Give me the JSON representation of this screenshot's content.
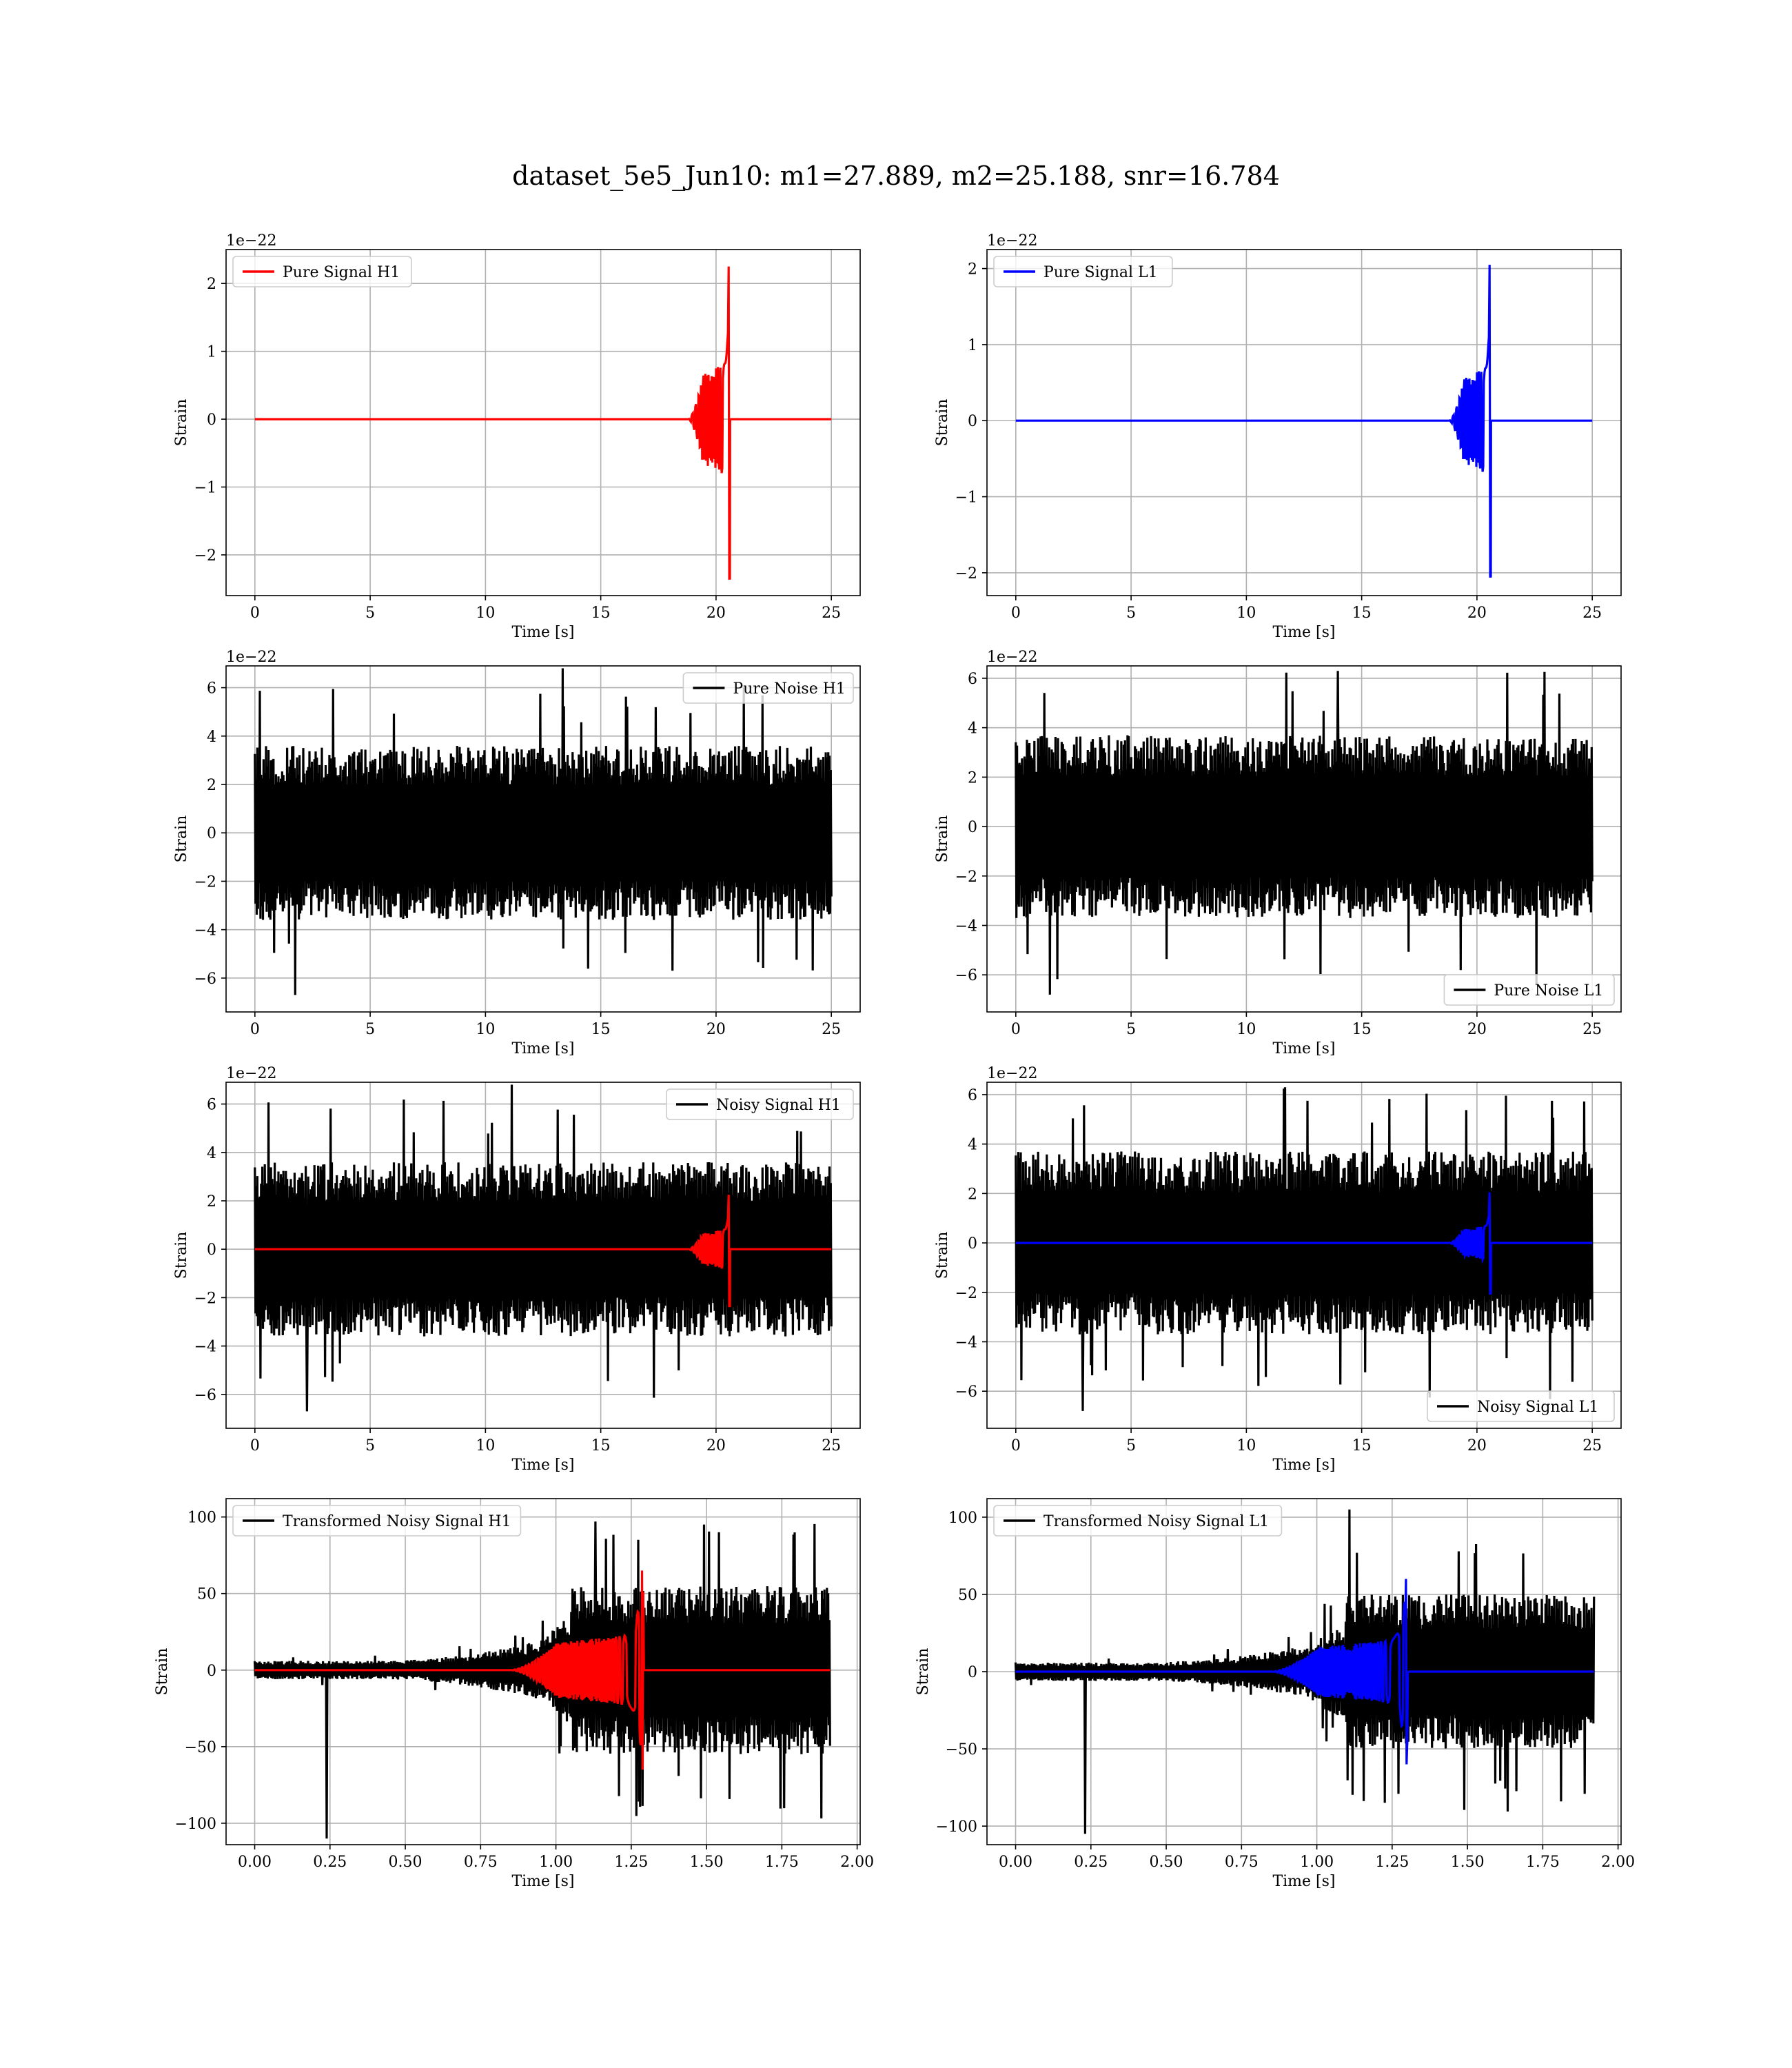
{
  "figure": {
    "title": "dataset_5e5_Jun10: m1=27.889, m2=25.188, snr=16.784"
  },
  "chart_data": [
    {
      "type": "line",
      "panel": "pure-signal-h1",
      "legend": "Pure Signal H1",
      "legend_loc": "upper-left",
      "xlabel": "Time [s]",
      "ylabel": "Strain",
      "offset_text": "1e−22",
      "xlim": [
        -1.25,
        26.25
      ],
      "ylim": [
        -2.6,
        2.5
      ],
      "xticks": [
        0,
        5,
        10,
        15,
        20,
        25
      ],
      "xtick_labels": [
        "0",
        "5",
        "10",
        "15",
        "20",
        "25"
      ],
      "yticks": [
        -2,
        -1,
        0,
        1,
        2
      ],
      "ytick_labels": [
        "−2",
        "−1",
        "0",
        "1",
        "2"
      ],
      "grid": true,
      "series": [
        {
          "name": "Pure Signal H1",
          "kind": "chirp",
          "color": "#ff0000",
          "x_range": [
            0,
            25
          ],
          "onset": 18.8,
          "peak_time": 20.6,
          "envelope_mid": 0.65,
          "peak_pos": 2.25,
          "peak_neg": -2.35
        }
      ]
    },
    {
      "type": "line",
      "panel": "pure-signal-l1",
      "legend": "Pure Signal L1",
      "legend_loc": "upper-left",
      "xlabel": "Time [s]",
      "ylabel": "Strain",
      "offset_text": "1e−22",
      "xlim": [
        -1.25,
        26.25
      ],
      "ylim": [
        -2.3,
        2.25
      ],
      "xticks": [
        0,
        5,
        10,
        15,
        20,
        25
      ],
      "xtick_labels": [
        "0",
        "5",
        "10",
        "15",
        "20",
        "25"
      ],
      "yticks": [
        -2,
        -1,
        0,
        1,
        2
      ],
      "ytick_labels": [
        "−2",
        "−1",
        "0",
        "1",
        "2"
      ],
      "grid": true,
      "series": [
        {
          "name": "Pure Signal L1",
          "kind": "chirp",
          "color": "#0000ff",
          "x_range": [
            0,
            25
          ],
          "onset": 18.8,
          "peak_time": 20.6,
          "envelope_mid": 0.55,
          "peak_pos": 2.05,
          "peak_neg": -2.05
        }
      ]
    },
    {
      "type": "line",
      "panel": "pure-noise-h1",
      "legend": "Pure Noise H1",
      "legend_loc": "upper-right",
      "xlabel": "Time [s]",
      "ylabel": "Strain",
      "offset_text": "1e−22",
      "xlim": [
        -1.25,
        26.25
      ],
      "ylim": [
        -7.4,
        6.9
      ],
      "xticks": [
        0,
        5,
        10,
        15,
        20,
        25
      ],
      "xtick_labels": [
        "0",
        "5",
        "10",
        "15",
        "20",
        "25"
      ],
      "yticks": [
        -6,
        -4,
        -2,
        0,
        2,
        4,
        6
      ],
      "ytick_labels": [
        "−6",
        "−4",
        "−2",
        "0",
        "2",
        "4",
        "6"
      ],
      "grid": true,
      "series": [
        {
          "name": "Pure Noise H1",
          "kind": "noise",
          "color": "#000000",
          "x_range": [
            0,
            25
          ],
          "band": 3.6,
          "peak_max": 6.8,
          "peak_min": -6.7
        }
      ]
    },
    {
      "type": "line",
      "panel": "pure-noise-l1",
      "legend": "Pure Noise L1",
      "legend_loc": "lower-right",
      "xlabel": "Time [s]",
      "ylabel": "Strain",
      "offset_text": "1e−22",
      "xlim": [
        -1.25,
        26.25
      ],
      "ylim": [
        -7.5,
        6.5
      ],
      "xticks": [
        0,
        5,
        10,
        15,
        20,
        25
      ],
      "xtick_labels": [
        "0",
        "5",
        "10",
        "15",
        "20",
        "25"
      ],
      "yticks": [
        -6,
        -4,
        -2,
        0,
        2,
        4,
        6
      ],
      "ytick_labels": [
        "−6",
        "−4",
        "−2",
        "0",
        "2",
        "4",
        "6"
      ],
      "grid": true,
      "series": [
        {
          "name": "Pure Noise L1",
          "kind": "noise",
          "color": "#000000",
          "x_range": [
            0,
            25
          ],
          "band": 3.7,
          "peak_max": 6.3,
          "peak_min": -6.8
        }
      ]
    },
    {
      "type": "line",
      "panel": "noisy-signal-h1",
      "legend": "Noisy Signal H1",
      "legend_loc": "upper-right",
      "xlabel": "Time [s]",
      "ylabel": "Strain",
      "offset_text": "1e−22",
      "xlim": [
        -1.25,
        26.25
      ],
      "ylim": [
        -7.4,
        6.9
      ],
      "xticks": [
        0,
        5,
        10,
        15,
        20,
        25
      ],
      "xtick_labels": [
        "0",
        "5",
        "10",
        "15",
        "20",
        "25"
      ],
      "yticks": [
        -6,
        -4,
        -2,
        0,
        2,
        4,
        6
      ],
      "ytick_labels": [
        "−6",
        "−4",
        "−2",
        "0",
        "2",
        "4",
        "6"
      ],
      "grid": true,
      "series": [
        {
          "name": "Noisy Signal H1",
          "kind": "noise",
          "color": "#000000",
          "x_range": [
            0,
            25
          ],
          "band": 3.6,
          "peak_max": 6.8,
          "peak_min": -6.7
        },
        {
          "name": "",
          "kind": "chirp",
          "color": "#ff0000",
          "x_range": [
            0,
            25
          ],
          "onset": 18.8,
          "peak_time": 20.6,
          "envelope_mid": 0.65,
          "peak_pos": 2.25,
          "peak_neg": -2.35
        }
      ]
    },
    {
      "type": "line",
      "panel": "noisy-signal-l1",
      "legend": "Noisy Signal L1",
      "legend_loc": "lower-right",
      "xlabel": "Time [s]",
      "ylabel": "Strain",
      "offset_text": "1e−22",
      "xlim": [
        -1.25,
        26.25
      ],
      "ylim": [
        -7.5,
        6.5
      ],
      "xticks": [
        0,
        5,
        10,
        15,
        20,
        25
      ],
      "xtick_labels": [
        "0",
        "5",
        "10",
        "15",
        "20",
        "25"
      ],
      "yticks": [
        -6,
        -4,
        -2,
        0,
        2,
        4,
        6
      ],
      "ytick_labels": [
        "−6",
        "−4",
        "−2",
        "0",
        "2",
        "4",
        "6"
      ],
      "grid": true,
      "series": [
        {
          "name": "Noisy Signal L1",
          "kind": "noise",
          "color": "#000000",
          "x_range": [
            0,
            25
          ],
          "band": 3.7,
          "peak_max": 6.3,
          "peak_min": -6.8
        },
        {
          "name": "",
          "kind": "chirp",
          "color": "#0000ff",
          "x_range": [
            0,
            25
          ],
          "onset": 18.8,
          "peak_time": 20.6,
          "envelope_mid": 0.55,
          "peak_pos": 2.05,
          "peak_neg": -2.05
        }
      ]
    },
    {
      "type": "line",
      "panel": "transformed-noisy-signal-h1",
      "legend": "Transformed Noisy Signal H1",
      "legend_loc": "upper-left",
      "xlabel": "Time [s]",
      "ylabel": "Strain",
      "offset_text": "",
      "xlim": [
        -0.095,
        2.01
      ],
      "ylim": [
        -114,
        112
      ],
      "xticks": [
        0,
        0.25,
        0.5,
        0.75,
        1.0,
        1.25,
        1.5,
        1.75,
        2.0
      ],
      "xtick_labels": [
        "0.00",
        "0.25",
        "0.50",
        "0.75",
        "1.00",
        "1.25",
        "1.50",
        "1.75",
        "2.00"
      ],
      "yticks": [
        -100,
        -50,
        0,
        50,
        100
      ],
      "ytick_labels": [
        "−100",
        "−50",
        "0",
        "50",
        "100"
      ],
      "grid": true,
      "series": [
        {
          "name": "Transformed Noisy Signal H1",
          "kind": "whitened",
          "color": "#000000",
          "x_range": [
            0,
            1.91
          ],
          "base": 6,
          "ramp_start": 0.4,
          "ramp_mid": 0.95,
          "high_start": 1.05,
          "high": 55,
          "peak_max": 97,
          "peak_min": -110
        },
        {
          "name": "",
          "kind": "chirp",
          "color": "#ff0000",
          "x_range": [
            0,
            1.91
          ],
          "onset": 0.85,
          "peak_time": 1.29,
          "envelope_mid": 18,
          "peak_pos": 65,
          "peak_neg": -65
        }
      ]
    },
    {
      "type": "line",
      "panel": "transformed-noisy-signal-l1",
      "legend": "Transformed Noisy Signal L1",
      "legend_loc": "upper-left",
      "xlabel": "Time [s]",
      "ylabel": "Strain",
      "offset_text": "",
      "xlim": [
        -0.095,
        2.01
      ],
      "ylim": [
        -112,
        112
      ],
      "xticks": [
        0,
        0.25,
        0.5,
        0.75,
        1.0,
        1.25,
        1.5,
        1.75,
        2.0
      ],
      "xtick_labels": [
        "0.00",
        "0.25",
        "0.50",
        "0.75",
        "1.00",
        "1.25",
        "1.50",
        "1.75",
        "2.00"
      ],
      "yticks": [
        -100,
        -50,
        0,
        50,
        100
      ],
      "ytick_labels": [
        "−100",
        "−50",
        "0",
        "50",
        "100"
      ],
      "grid": true,
      "series": [
        {
          "name": "Transformed Noisy Signal L1",
          "kind": "whitened",
          "color": "#000000",
          "x_range": [
            0,
            1.92
          ],
          "base": 6,
          "ramp_start": 0.4,
          "ramp_mid": 0.95,
          "high_start": 1.1,
          "high": 50,
          "peak_max": 105,
          "peak_min": -105
        },
        {
          "name": "",
          "kind": "chirp",
          "color": "#0000ff",
          "x_range": [
            0,
            1.92
          ],
          "onset": 0.85,
          "peak_time": 1.3,
          "envelope_mid": 16,
          "peak_pos": 60,
          "peak_neg": -60
        }
      ]
    }
  ]
}
